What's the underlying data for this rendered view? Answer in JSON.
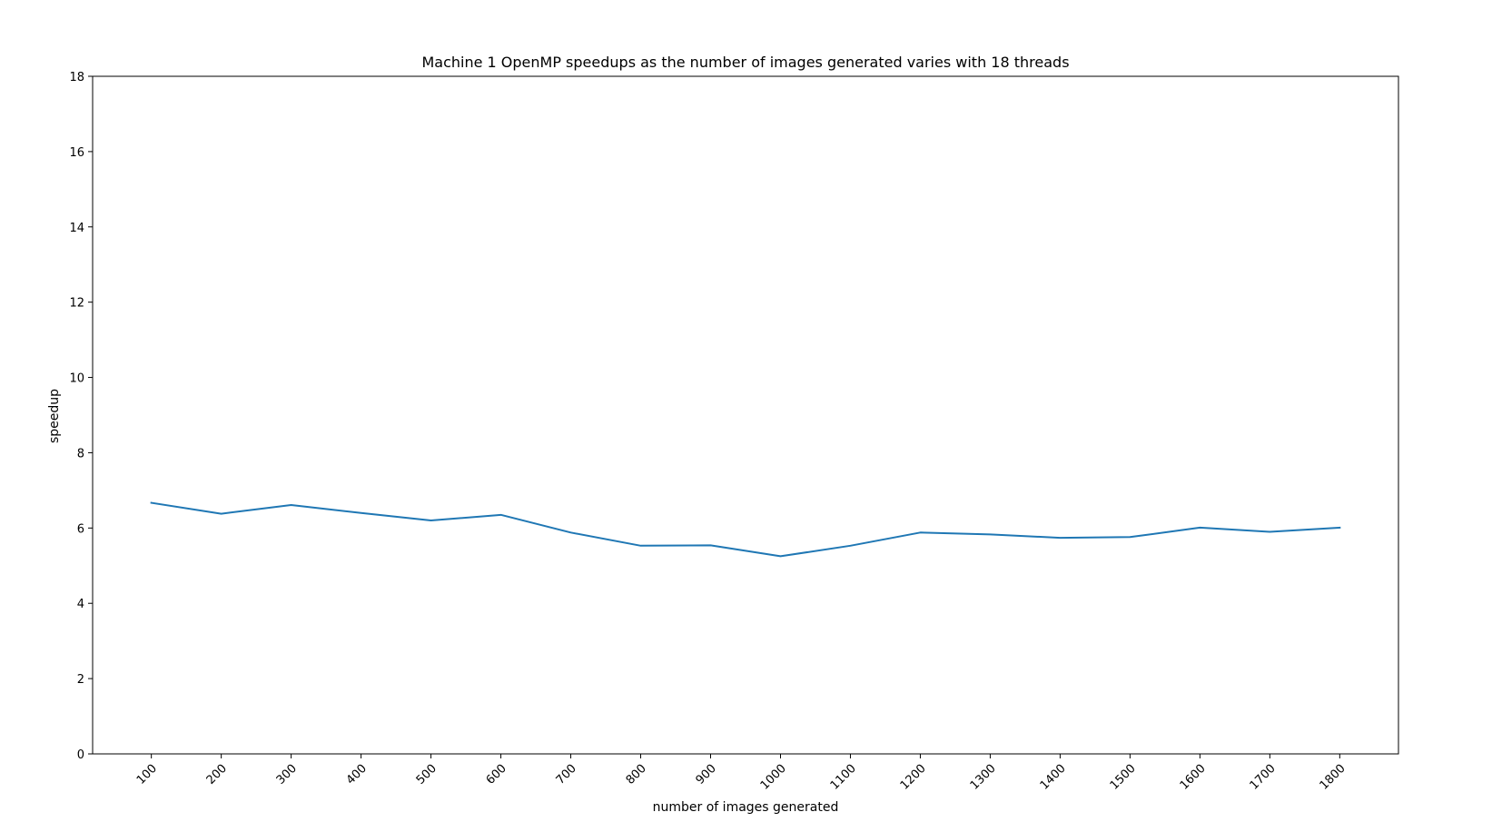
{
  "chart_data": {
    "type": "line",
    "title": "Machine 1 OpenMP speedups as the number of images generated varies with 18 threads",
    "xlabel": "number of images generated",
    "ylabel": "speedup",
    "x": [
      100,
      200,
      300,
      400,
      500,
      600,
      700,
      800,
      900,
      1000,
      1100,
      1200,
      1300,
      1400,
      1500,
      1600,
      1700,
      1800
    ],
    "x_tick_labels": [
      "100",
      "200",
      "300",
      "400",
      "500",
      "600",
      "700",
      "800",
      "900",
      "1000",
      "1100",
      "1200",
      "1300",
      "1400",
      "1500",
      "1600",
      "1700",
      "1800"
    ],
    "series": [
      {
        "values": [
          6.67,
          6.38,
          6.61,
          6.4,
          6.2,
          6.35,
          5.88,
          5.53,
          5.54,
          5.25,
          5.53,
          5.88,
          5.83,
          5.74,
          5.76,
          6.01,
          5.9,
          6.01
        ],
        "color": "#1f77b4"
      }
    ],
    "xlim": [
      16,
      1884
    ],
    "ylim": [
      0,
      18
    ],
    "y_ticks": [
      0,
      2,
      4,
      6,
      8,
      10,
      12,
      14,
      16,
      18
    ],
    "y_tick_labels": [
      "0",
      "2",
      "4",
      "6",
      "8",
      "10",
      "12",
      "14",
      "16",
      "18"
    ],
    "grid": false,
    "legend": "none"
  }
}
